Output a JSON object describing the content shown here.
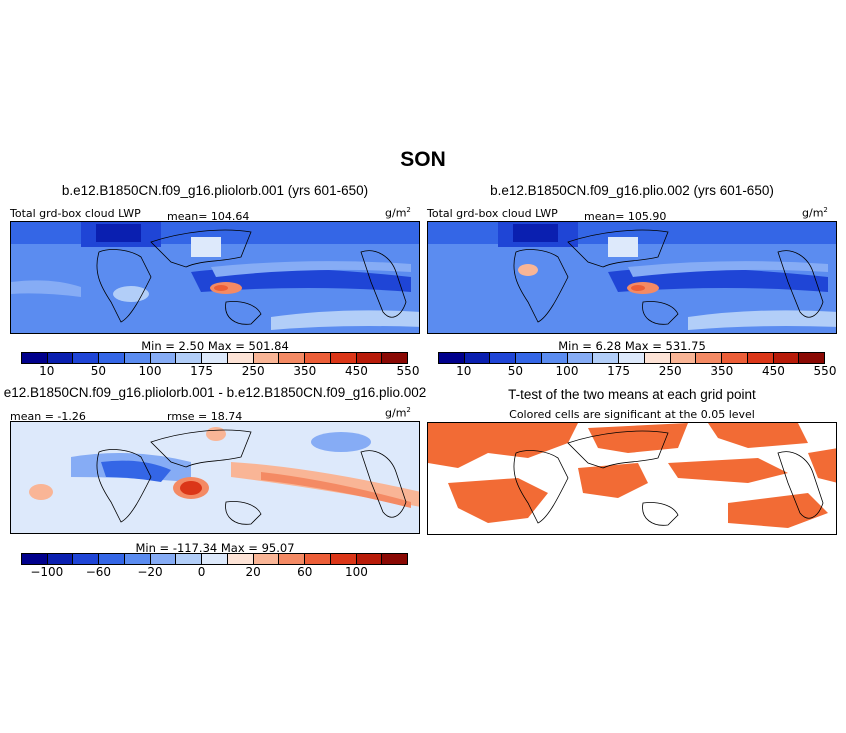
{
  "page_title": "SON",
  "panels": {
    "p1": {
      "title": "b.e12.B1850CN.f09_g16.pliolorb.001 (yrs 601-650)",
      "left_label": "Total grd-box cloud LWP",
      "mean_label": "mean= 104.64",
      "units": "g/m",
      "units_sup": "2",
      "minmax": "Min =    2.50  Max = 501.84"
    },
    "p2": {
      "title": "b.e12.B1850CN.f09_g16.plio.002 (yrs 601-650)",
      "left_label": "Total grd-box cloud LWP",
      "mean_label": "mean= 105.90",
      "units": "g/m",
      "units_sup": "2",
      "minmax": "Min =    6.28  Max = 531.75"
    },
    "p3": {
      "title": "e12.B1850CN.f09_g16.pliolorb.001 - b.e12.B1850CN.f09_g16.plio.002",
      "mean_label": "mean =  -1.26",
      "rmse_label": "rmse =   18.74",
      "units": "g/m",
      "units_sup": "2",
      "minmax": "Min = -117.34  Max =   95.07"
    },
    "p4": {
      "title": "T-test of the two means at each grid point",
      "subtitle": "Colored cells are significant at the 0.05 level"
    }
  },
  "colorbars": {
    "abs": {
      "colors": [
        "#00008c",
        "#0a1fb0",
        "#1f45d6",
        "#3466e6",
        "#5b8cf0",
        "#86acf5",
        "#b2cef8",
        "#dde9fb",
        "#fde3d6",
        "#f9b596",
        "#f48a64",
        "#ec5e38",
        "#db3618",
        "#b81b09",
        "#8a0904"
      ],
      "ticks": [
        "10",
        "50",
        "100",
        "175",
        "250",
        "350",
        "450",
        "550"
      ]
    },
    "diff": {
      "colors": [
        "#00008c",
        "#0a1fb0",
        "#1f45d6",
        "#3466e6",
        "#5b8cf0",
        "#86acf5",
        "#b2cef8",
        "#dde9fb",
        "#fde3d6",
        "#f9b596",
        "#f48a64",
        "#ec5e38",
        "#db3618",
        "#b81b09",
        "#8a0904"
      ],
      "ticks": [
        "−100",
        "−60",
        "−20",
        "0",
        "20",
        "60",
        "100"
      ]
    }
  },
  "significant_color": "#f26b35"
}
